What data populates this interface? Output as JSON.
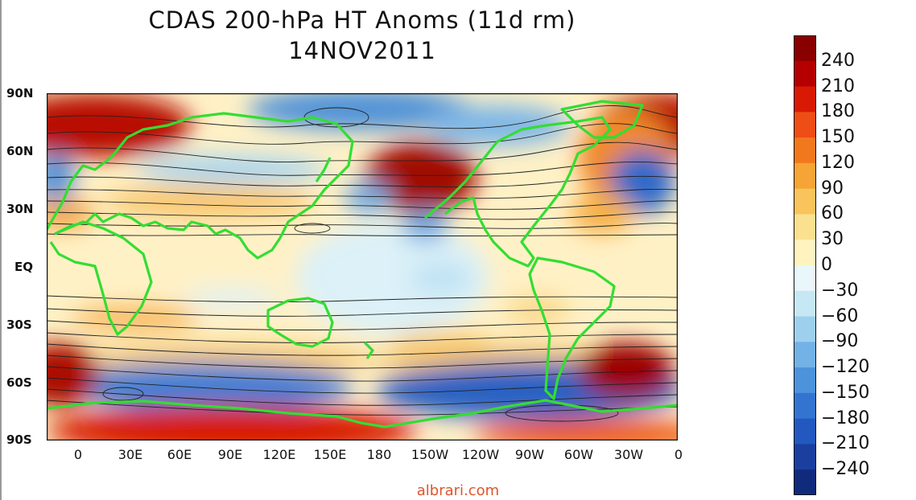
{
  "title": "CDAS 200-hPa HT Anoms (11d rm)",
  "date": "14NOV2011",
  "lat_labels": [
    "90N",
    "60N",
    "30N",
    "EQ",
    "30S",
    "60S",
    "90S"
  ],
  "lon_labels": [
    "0",
    "30E",
    "60E",
    "90E",
    "120E",
    "150E",
    "180",
    "150W",
    "120W",
    "90W",
    "60W",
    "30W",
    "0"
  ],
  "colorbar": {
    "labels": [
      "240",
      "210",
      "180",
      "150",
      "120",
      "90",
      "60",
      "30",
      "0",
      "-30",
      "-60",
      "-90",
      "-120",
      "-150",
      "-180",
      "-210",
      "-240"
    ],
    "colors": [
      "#8a0000",
      "#b40000",
      "#d81a05",
      "#ee4d15",
      "#f2781e",
      "#f6a435",
      "#f8c45b",
      "#fbe08f",
      "#fff4c0",
      "#e9f7fb",
      "#c6e8f4",
      "#9ed0ee",
      "#72b2e7",
      "#4c93dc",
      "#3474d1",
      "#2358c0",
      "#1a3f9f",
      "#102a7c"
    ]
  },
  "watermark": "albrari.com"
}
